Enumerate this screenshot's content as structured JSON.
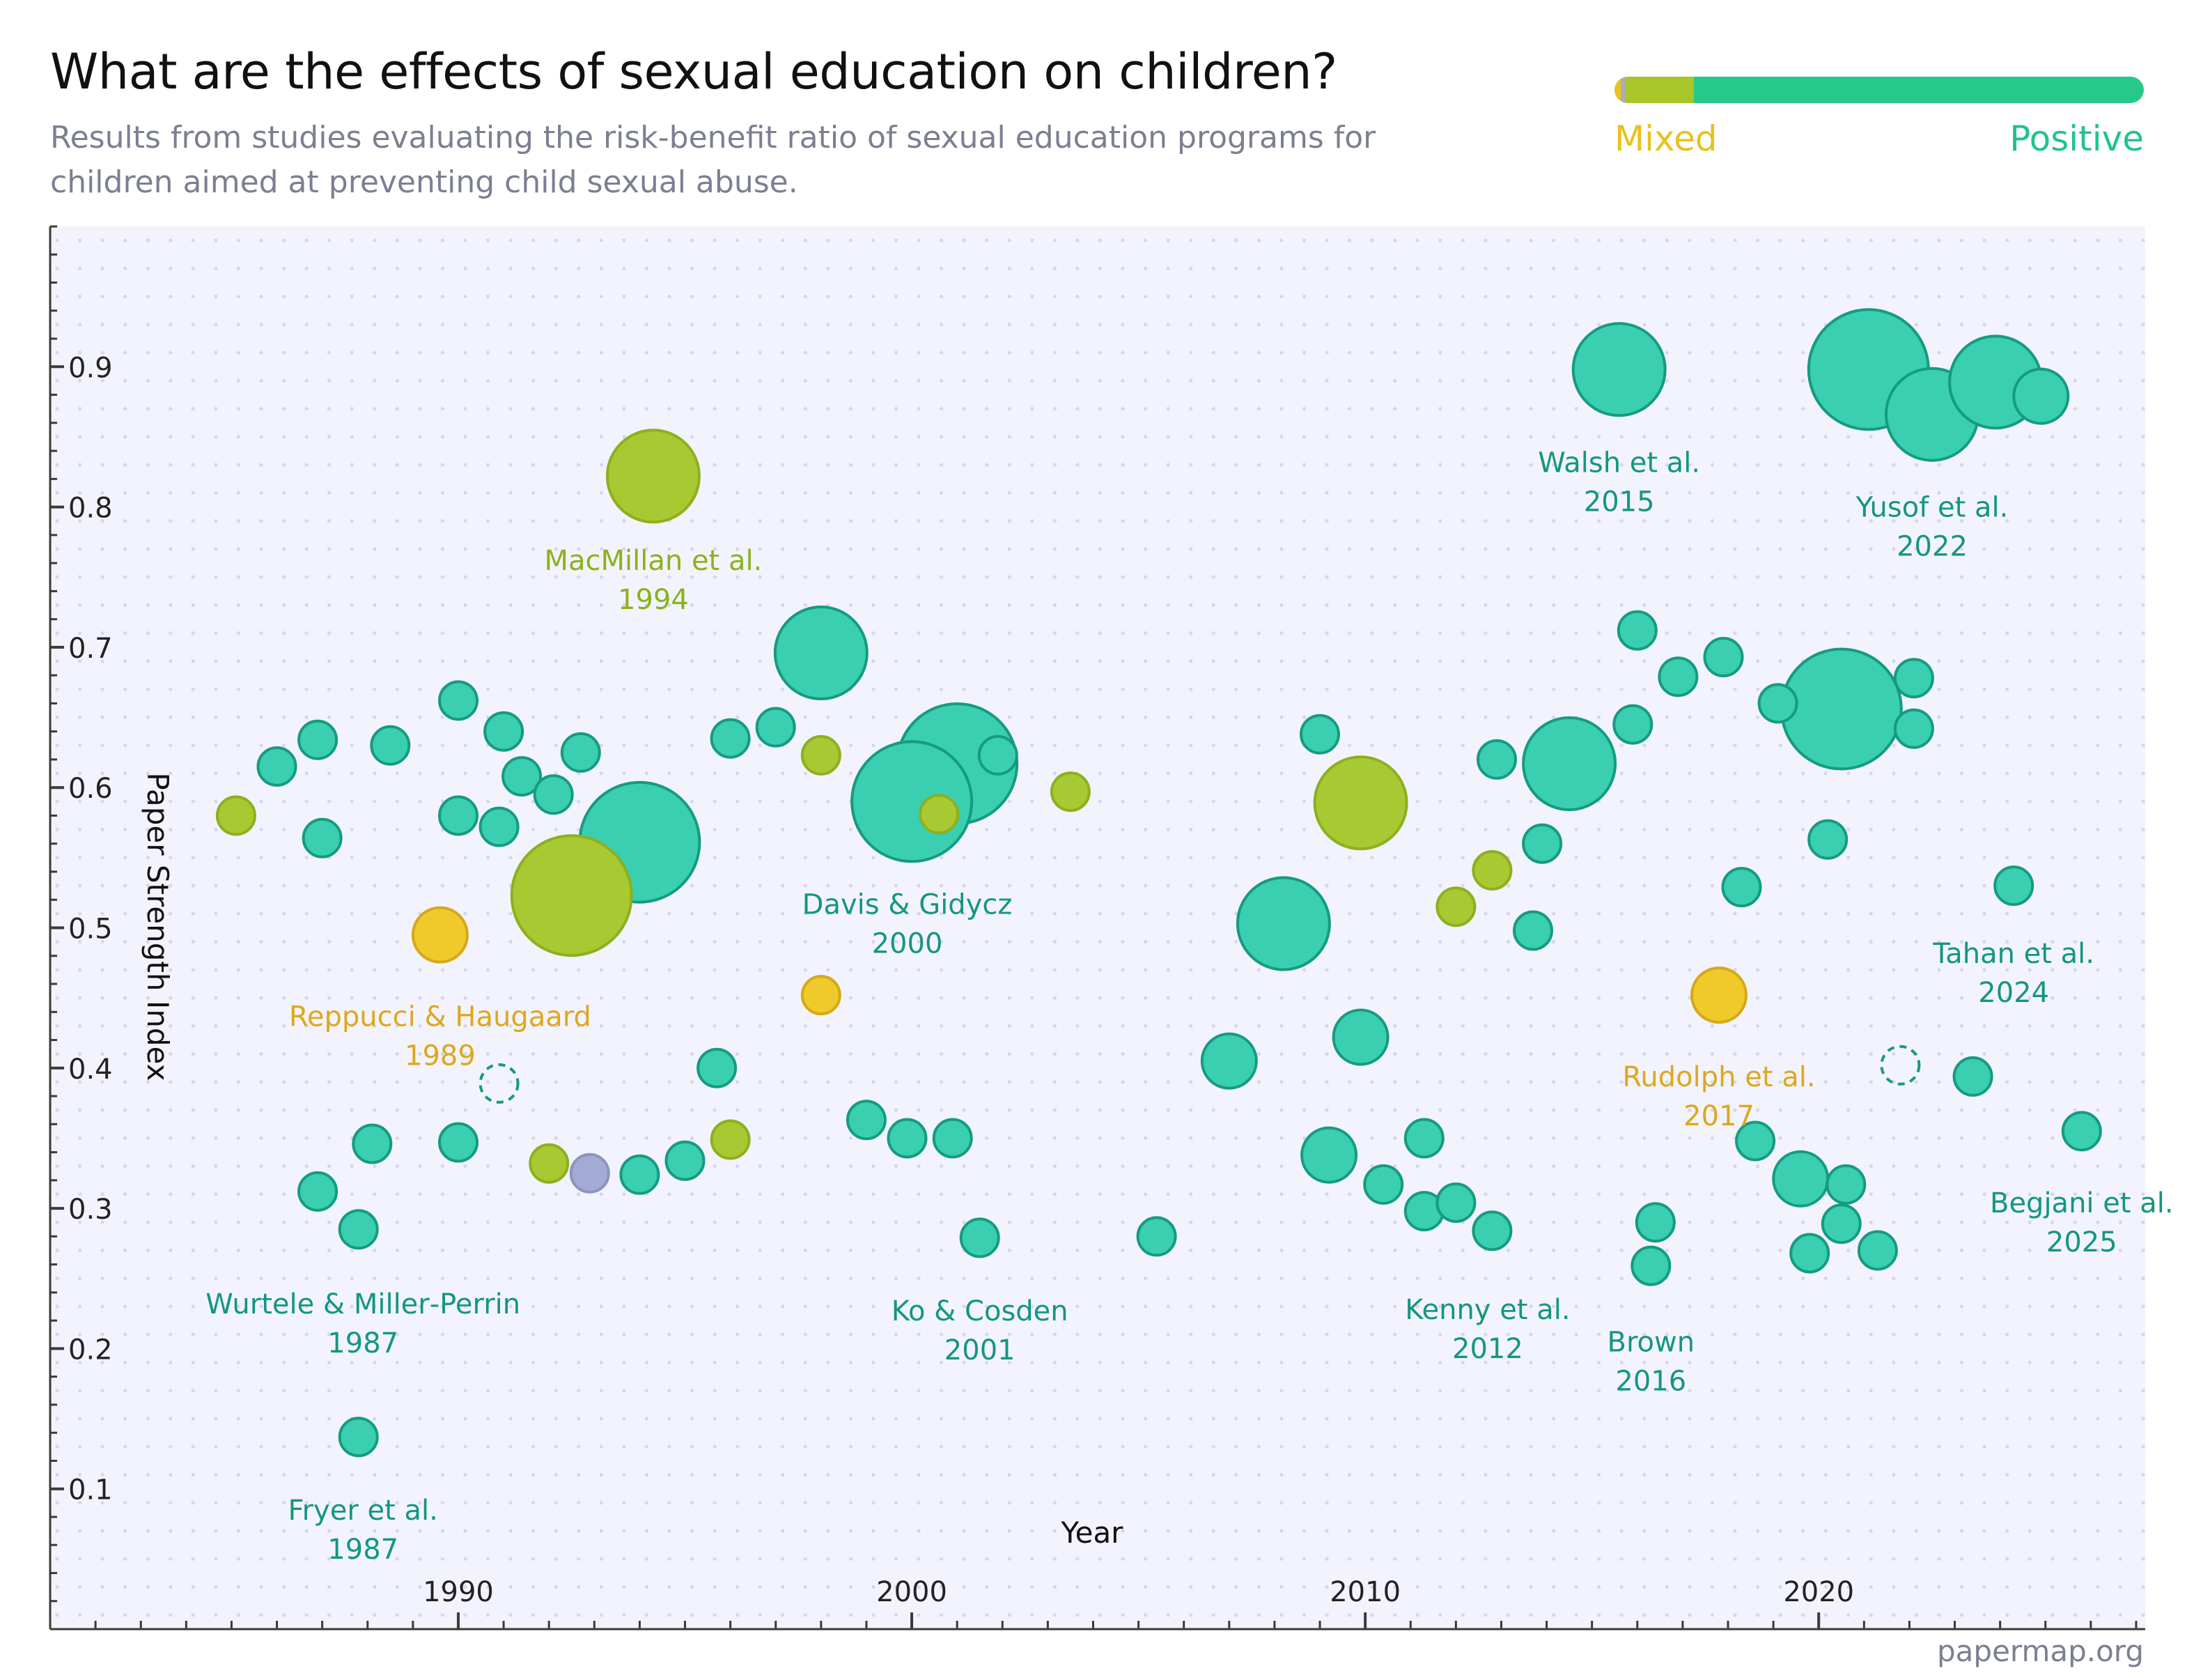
{
  "header": {
    "title": "What are the effects of sexual education on children?",
    "subtitle": "Results from studies evaluating the risk-benefit ratio of sexual education programs for children aimed at preventing child sexual abuse."
  },
  "legend": {
    "mixed_label": "Mixed",
    "positive_label": "Positive",
    "mixed_color": "#e8c21e",
    "positive_color": "#20c48c",
    "bar_segments": [
      {
        "fraction": 0.012,
        "color": "#e8c21e"
      },
      {
        "fraction": 0.008,
        "color": "#a8adbd"
      },
      {
        "fraction": 0.13,
        "color": "#a8c62a"
      },
      {
        "fraction": 0.85,
        "color": "#27c98a"
      }
    ]
  },
  "footer": {
    "source": "papermap.org"
  },
  "colors": {
    "positive_fill": "#39cfb0",
    "positive_stroke": "#169a84",
    "positive_label": "#139682",
    "mixed_green_fill": "#a8c932",
    "mixed_green_stroke": "#8eaf1f",
    "mixed_green_label": "#8ab21c",
    "mixed_yellow_fill": "#f0c92a",
    "mixed_yellow_stroke": "#d4a81a",
    "mixed_yellow_label": "#dca81d",
    "neutral_fill": "#a3abd4",
    "neutral_stroke": "#8c93bf",
    "plot_background": "#f3f3fd"
  },
  "chart_data": {
    "type": "scatter",
    "xlabel": "Year",
    "ylabel": "Paper Strength Index",
    "xlim": [
      1981,
      2027.2
    ],
    "ylim": [
      0,
      1.0
    ],
    "x_ticks": [
      1990,
      2000,
      2010,
      2020
    ],
    "y_ticks": [
      0.1,
      0.2,
      0.3,
      0.4,
      0.5,
      0.6,
      0.7,
      0.8,
      0.9
    ],
    "size_levels": {
      "s": "small",
      "m": "medium",
      "l": "large",
      "xl": "extra large"
    },
    "points": [
      {
        "x": 1985.1,
        "y": 0.58,
        "cat": "mixed_green",
        "size": "s"
      },
      {
        "x": 1986.0,
        "y": 0.615,
        "cat": "positive",
        "size": "s"
      },
      {
        "x": 1986.9,
        "y": 0.634,
        "cat": "positive",
        "size": "s"
      },
      {
        "x": 1987.0,
        "y": 0.564,
        "cat": "positive",
        "size": "s"
      },
      {
        "x": 1988.5,
        "y": 0.63,
        "cat": "positive",
        "size": "s"
      },
      {
        "x": 1990.0,
        "y": 0.662,
        "cat": "positive",
        "size": "s"
      },
      {
        "x": 1990.0,
        "y": 0.58,
        "cat": "positive",
        "size": "s"
      },
      {
        "x": 1990.9,
        "y": 0.572,
        "cat": "positive",
        "size": "s"
      },
      {
        "x": 1991.0,
        "y": 0.64,
        "cat": "positive",
        "size": "s"
      },
      {
        "x": 1991.4,
        "y": 0.608,
        "cat": "positive",
        "size": "s"
      },
      {
        "x": 1992.1,
        "y": 0.595,
        "cat": "positive",
        "size": "s"
      },
      {
        "x": 1992.7,
        "y": 0.625,
        "cat": "positive",
        "size": "s"
      },
      {
        "x": 1994.0,
        "y": 0.561,
        "cat": "positive",
        "size": "xl"
      },
      {
        "x": 1992.5,
        "y": 0.523,
        "cat": "mixed_green",
        "size": "xl"
      },
      {
        "x": 1994.3,
        "y": 0.822,
        "cat": "mixed_green",
        "size": "l"
      },
      {
        "x": 1989.6,
        "y": 0.495,
        "cat": "mixed_yellow",
        "size": "m"
      },
      {
        "x": 1990.9,
        "y": 0.389,
        "cat": "positive_dashed",
        "size": "s"
      },
      {
        "x": 1986.9,
        "y": 0.312,
        "cat": "positive",
        "size": "s"
      },
      {
        "x": 1988.1,
        "y": 0.346,
        "cat": "positive",
        "size": "s"
      },
      {
        "x": 1987.8,
        "y": 0.285,
        "cat": "positive",
        "size": "s"
      },
      {
        "x": 1987.8,
        "y": 0.137,
        "cat": "positive",
        "size": "s"
      },
      {
        "x": 1990.0,
        "y": 0.347,
        "cat": "positive",
        "size": "s"
      },
      {
        "x": 1992.0,
        "y": 0.332,
        "cat": "mixed_green",
        "size": "s"
      },
      {
        "x": 1992.9,
        "y": 0.325,
        "cat": "neutral",
        "size": "s"
      },
      {
        "x": 1994.0,
        "y": 0.324,
        "cat": "positive",
        "size": "s"
      },
      {
        "x": 1995.0,
        "y": 0.334,
        "cat": "positive",
        "size": "s"
      },
      {
        "x": 1995.7,
        "y": 0.4,
        "cat": "positive",
        "size": "s"
      },
      {
        "x": 1996.0,
        "y": 0.349,
        "cat": "mixed_green",
        "size": "s"
      },
      {
        "x": 1996.0,
        "y": 0.635,
        "cat": "positive",
        "size": "s"
      },
      {
        "x": 1997.0,
        "y": 0.643,
        "cat": "positive",
        "size": "s"
      },
      {
        "x": 1998.0,
        "y": 0.696,
        "cat": "positive",
        "size": "l"
      },
      {
        "x": 1998.0,
        "y": 0.623,
        "cat": "mixed_green",
        "size": "s"
      },
      {
        "x": 1998.0,
        "y": 0.452,
        "cat": "mixed_yellow",
        "size": "s"
      },
      {
        "x": 2001.0,
        "y": 0.617,
        "cat": "positive",
        "size": "xl"
      },
      {
        "x": 2000.0,
        "y": 0.59,
        "cat": "positive",
        "size": "xl"
      },
      {
        "x": 2000.6,
        "y": 0.581,
        "cat": "mixed_green",
        "size": "s"
      },
      {
        "x": 2001.9,
        "y": 0.623,
        "cat": "positive",
        "size": "s"
      },
      {
        "x": 2003.5,
        "y": 0.597,
        "cat": "mixed_green",
        "size": "s"
      },
      {
        "x": 1999.0,
        "y": 0.363,
        "cat": "positive",
        "size": "s"
      },
      {
        "x": 1999.9,
        "y": 0.35,
        "cat": "positive",
        "size": "s"
      },
      {
        "x": 2000.9,
        "y": 0.35,
        "cat": "positive",
        "size": "s"
      },
      {
        "x": 2001.5,
        "y": 0.279,
        "cat": "positive",
        "size": "s"
      },
      {
        "x": 2005.4,
        "y": 0.28,
        "cat": "positive",
        "size": "s"
      },
      {
        "x": 2007.0,
        "y": 0.405,
        "cat": "positive",
        "size": "m"
      },
      {
        "x": 2008.2,
        "y": 0.503,
        "cat": "positive",
        "size": "l"
      },
      {
        "x": 2009.0,
        "y": 0.638,
        "cat": "positive",
        "size": "s"
      },
      {
        "x": 2009.9,
        "y": 0.589,
        "cat": "mixed_green",
        "size": "l"
      },
      {
        "x": 2009.9,
        "y": 0.422,
        "cat": "positive",
        "size": "m"
      },
      {
        "x": 2009.2,
        "y": 0.338,
        "cat": "positive",
        "size": "m"
      },
      {
        "x": 2010.4,
        "y": 0.317,
        "cat": "positive",
        "size": "s"
      },
      {
        "x": 2011.3,
        "y": 0.35,
        "cat": "positive",
        "size": "s"
      },
      {
        "x": 2011.3,
        "y": 0.298,
        "cat": "positive",
        "size": "s"
      },
      {
        "x": 2012.0,
        "y": 0.515,
        "cat": "mixed_green",
        "size": "s"
      },
      {
        "x": 2012.0,
        "y": 0.304,
        "cat": "positive",
        "size": "s"
      },
      {
        "x": 2012.8,
        "y": 0.541,
        "cat": "mixed_green",
        "size": "s"
      },
      {
        "x": 2012.9,
        "y": 0.62,
        "cat": "positive",
        "size": "s"
      },
      {
        "x": 2012.8,
        "y": 0.284,
        "cat": "positive",
        "size": "s"
      },
      {
        "x": 2013.7,
        "y": 0.498,
        "cat": "positive",
        "size": "s"
      },
      {
        "x": 2013.9,
        "y": 0.56,
        "cat": "positive",
        "size": "s"
      },
      {
        "x": 2014.5,
        "y": 0.617,
        "cat": "positive",
        "size": "l"
      },
      {
        "x": 2015.6,
        "y": 0.898,
        "cat": "positive",
        "size": "l"
      },
      {
        "x": 2016.0,
        "y": 0.712,
        "cat": "positive",
        "size": "s"
      },
      {
        "x": 2015.9,
        "y": 0.645,
        "cat": "positive",
        "size": "s"
      },
      {
        "x": 2016.9,
        "y": 0.679,
        "cat": "positive",
        "size": "s"
      },
      {
        "x": 2016.4,
        "y": 0.29,
        "cat": "positive",
        "size": "s"
      },
      {
        "x": 2016.3,
        "y": 0.259,
        "cat": "positive",
        "size": "s"
      },
      {
        "x": 2017.9,
        "y": 0.693,
        "cat": "positive",
        "size": "s"
      },
      {
        "x": 2018.3,
        "y": 0.529,
        "cat": "positive",
        "size": "s"
      },
      {
        "x": 2017.8,
        "y": 0.452,
        "cat": "mixed_yellow",
        "size": "m"
      },
      {
        "x": 2018.6,
        "y": 0.348,
        "cat": "positive",
        "size": "s"
      },
      {
        "x": 2019.1,
        "y": 0.66,
        "cat": "positive",
        "size": "s"
      },
      {
        "x": 2020.5,
        "y": 0.656,
        "cat": "positive",
        "size": "xl"
      },
      {
        "x": 2019.6,
        "y": 0.321,
        "cat": "positive",
        "size": "m"
      },
      {
        "x": 2019.8,
        "y": 0.268,
        "cat": "positive",
        "size": "s"
      },
      {
        "x": 2020.2,
        "y": 0.563,
        "cat": "positive",
        "size": "s"
      },
      {
        "x": 2020.5,
        "y": 0.289,
        "cat": "positive",
        "size": "s"
      },
      {
        "x": 2020.6,
        "y": 0.317,
        "cat": "positive",
        "size": "s"
      },
      {
        "x": 2021.1,
        "y": 0.898,
        "cat": "positive",
        "size": "xl"
      },
      {
        "x": 2021.3,
        "y": 0.27,
        "cat": "positive",
        "size": "s"
      },
      {
        "x": 2022.1,
        "y": 0.678,
        "cat": "positive",
        "size": "s"
      },
      {
        "x": 2022.1,
        "y": 0.642,
        "cat": "positive",
        "size": "s"
      },
      {
        "x": 2021.8,
        "y": 0.402,
        "cat": "positive_dashed",
        "size": "s"
      },
      {
        "x": 2022.5,
        "y": 0.866,
        "cat": "positive",
        "size": "l"
      },
      {
        "x": 2023.9,
        "y": 0.889,
        "cat": "positive",
        "size": "l"
      },
      {
        "x": 2024.9,
        "y": 0.879,
        "cat": "positive",
        "size": "m"
      },
      {
        "x": 2023.4,
        "y": 0.394,
        "cat": "positive",
        "size": "s"
      },
      {
        "x": 2024.3,
        "y": 0.53,
        "cat": "positive",
        "size": "s"
      },
      {
        "x": 2025.8,
        "y": 0.355,
        "cat": "positive",
        "size": "s"
      }
    ],
    "annotations": [
      {
        "text": [
          "MacMillan et al.",
          "1994"
        ],
        "x": 1994.3,
        "y": 0.755,
        "cat": "mixed_green"
      },
      {
        "text": [
          "Reppucci & Haugaard",
          "1989"
        ],
        "x": 1989.6,
        "y": 0.43,
        "cat": "mixed_yellow"
      },
      {
        "text": [
          "Davis & Gidycz",
          "2000"
        ],
        "x": 1999.9,
        "y": 0.51,
        "cat": "positive"
      },
      {
        "text": [
          "Wurtele & Miller‐Perrin",
          "1987"
        ],
        "x": 1987.9,
        "y": 0.225,
        "cat": "positive"
      },
      {
        "text": [
          "Fryer et al.",
          "1987"
        ],
        "x": 1987.9,
        "y": 0.078,
        "cat": "positive"
      },
      {
        "text": [
          "Ko & Cosden",
          "2001"
        ],
        "x": 2001.5,
        "y": 0.22,
        "cat": "positive"
      },
      {
        "text": [
          "Walsh et al.",
          "2015"
        ],
        "x": 2015.6,
        "y": 0.825,
        "cat": "positive"
      },
      {
        "text": [
          "Yusof et al.",
          "2022"
        ],
        "x": 2022.5,
        "y": 0.793,
        "cat": "positive"
      },
      {
        "text": [
          "Tahan et al.",
          "2024"
        ],
        "x": 2024.3,
        "y": 0.475,
        "cat": "positive"
      },
      {
        "text": [
          "Rudolph et al.",
          "2017"
        ],
        "x": 2017.8,
        "y": 0.387,
        "cat": "mixed_yellow"
      },
      {
        "text": [
          "Kenny et al.",
          "2012"
        ],
        "x": 2012.7,
        "y": 0.221,
        "cat": "positive"
      },
      {
        "text": [
          "Brown",
          "2016"
        ],
        "x": 2016.3,
        "y": 0.198,
        "cat": "positive"
      },
      {
        "text": [
          "Begjani et al.",
          "2025"
        ],
        "x": 2025.8,
        "y": 0.297,
        "cat": "positive"
      }
    ]
  }
}
